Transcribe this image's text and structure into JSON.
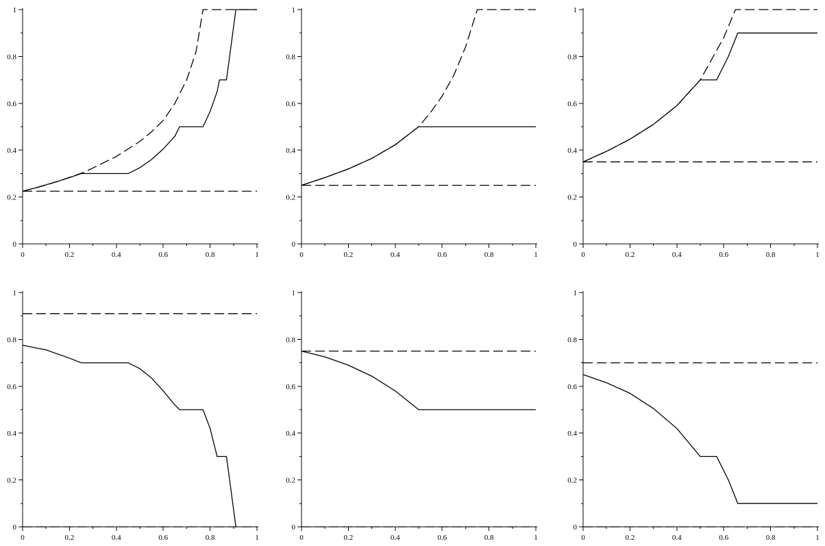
{
  "chart_data": [
    {
      "type": "line",
      "xlim": [
        0,
        1
      ],
      "ylim": [
        0,
        1
      ],
      "xticks": [
        "0",
        "0.2",
        "0.4",
        "0.6",
        "0.8",
        "1"
      ],
      "yticks": [
        "0",
        "0.2",
        "0.4",
        "0.6",
        "0.8",
        "1"
      ],
      "grid": false,
      "series": [
        {
          "style": "solid",
          "points": [
            [
              0,
              0.225
            ],
            [
              0.05,
              0.238
            ],
            [
              0.1,
              0.252
            ],
            [
              0.15,
              0.267
            ],
            [
              0.2,
              0.283
            ],
            [
              0.25,
              0.3
            ],
            [
              0.26,
              0.3
            ],
            [
              0.45,
              0.3
            ],
            [
              0.5,
              0.325
            ],
            [
              0.55,
              0.36
            ],
            [
              0.6,
              0.405
            ],
            [
              0.65,
              0.46
            ],
            [
              0.67,
              0.5
            ],
            [
              0.77,
              0.5
            ],
            [
              0.8,
              0.565
            ],
            [
              0.83,
              0.65
            ],
            [
              0.84,
              0.7
            ],
            [
              0.87,
              0.7
            ],
            [
              0.89,
              0.85
            ],
            [
              0.91,
              1.0
            ],
            [
              1,
              1.0
            ]
          ]
        },
        {
          "style": "dashed",
          "points": [
            [
              0,
              0.225
            ],
            [
              0.1,
              0.251
            ],
            [
              0.2,
              0.284
            ],
            [
              0.26,
              0.305
            ],
            [
              0.3,
              0.324
            ],
            [
              0.4,
              0.373
            ],
            [
              0.5,
              0.437
            ],
            [
              0.55,
              0.478
            ],
            [
              0.6,
              0.527
            ],
            [
              0.65,
              0.6
            ],
            [
              0.7,
              0.7
            ],
            [
              0.74,
              0.82
            ],
            [
              0.77,
              1.0
            ],
            [
              1,
              1.0
            ]
          ]
        },
        {
          "style": "dashed",
          "points": [
            [
              0,
              0.225
            ],
            [
              1,
              0.225
            ]
          ]
        }
      ]
    },
    {
      "type": "line",
      "xlim": [
        0,
        1
      ],
      "ylim": [
        0,
        1
      ],
      "xticks": [
        "0",
        "0.2",
        "0.4",
        "0.6",
        "0.8",
        "1"
      ],
      "yticks": [
        "0",
        "0.2",
        "0.4",
        "0.6",
        "0.8",
        "1"
      ],
      "grid": false,
      "series": [
        {
          "style": "solid",
          "points": [
            [
              0,
              0.25
            ],
            [
              0.1,
              0.283
            ],
            [
              0.2,
              0.32
            ],
            [
              0.3,
              0.365
            ],
            [
              0.4,
              0.423
            ],
            [
              0.5,
              0.5
            ],
            [
              1,
              0.5
            ]
          ]
        },
        {
          "style": "dashed",
          "points": [
            [
              0,
              0.25
            ],
            [
              0.1,
              0.283
            ],
            [
              0.2,
              0.32
            ],
            [
              0.3,
              0.365
            ],
            [
              0.4,
              0.423
            ],
            [
              0.5,
              0.5
            ],
            [
              0.55,
              0.56
            ],
            [
              0.6,
              0.63
            ],
            [
              0.65,
              0.72
            ],
            [
              0.7,
              0.84
            ],
            [
              0.75,
              1.0
            ],
            [
              1,
              1.0
            ]
          ]
        },
        {
          "style": "dashed",
          "points": [
            [
              0,
              0.25
            ],
            [
              1,
              0.25
            ]
          ]
        }
      ]
    },
    {
      "type": "line",
      "xlim": [
        0,
        1
      ],
      "ylim": [
        0,
        1
      ],
      "xticks": [
        "0",
        "0.2",
        "0.4",
        "0.6",
        "0.8",
        "1"
      ],
      "yticks": [
        "0",
        "0.2",
        "0.4",
        "0.6",
        "0.8",
        "1"
      ],
      "grid": false,
      "series": [
        {
          "style": "solid",
          "points": [
            [
              0,
              0.35
            ],
            [
              0.1,
              0.395
            ],
            [
              0.2,
              0.447
            ],
            [
              0.3,
              0.51
            ],
            [
              0.4,
              0.59
            ],
            [
              0.5,
              0.7
            ],
            [
              0.57,
              0.7
            ],
            [
              0.62,
              0.8
            ],
            [
              0.66,
              0.9
            ],
            [
              1,
              0.9
            ]
          ]
        },
        {
          "style": "dashed",
          "points": [
            [
              0,
              0.35
            ],
            [
              0.1,
              0.395
            ],
            [
              0.2,
              0.447
            ],
            [
              0.3,
              0.51
            ],
            [
              0.4,
              0.59
            ],
            [
              0.5,
              0.7
            ],
            [
              0.55,
              0.79
            ],
            [
              0.6,
              0.88
            ],
            [
              0.65,
              1.0
            ],
            [
              1,
              1.0
            ]
          ]
        },
        {
          "style": "dashed",
          "points": [
            [
              0,
              0.35
            ],
            [
              1,
              0.35
            ]
          ]
        }
      ]
    },
    {
      "type": "line",
      "xlim": [
        0,
        1
      ],
      "ylim": [
        0,
        1
      ],
      "xticks": [
        "0",
        "0.2",
        "0.4",
        "0.6",
        "0.8",
        "1"
      ],
      "yticks": [
        "0",
        "0.2",
        "0.4",
        "0.6",
        "0.8",
        "1"
      ],
      "grid": false,
      "series": [
        {
          "style": "solid",
          "points": [
            [
              0,
              0.775
            ],
            [
              0.1,
              0.755
            ],
            [
              0.2,
              0.72
            ],
            [
              0.25,
              0.7
            ],
            [
              0.45,
              0.7
            ],
            [
              0.5,
              0.675
            ],
            [
              0.55,
              0.635
            ],
            [
              0.6,
              0.58
            ],
            [
              0.65,
              0.52
            ],
            [
              0.67,
              0.5
            ],
            [
              0.77,
              0.5
            ],
            [
              0.8,
              0.42
            ],
            [
              0.83,
              0.3
            ],
            [
              0.87,
              0.3
            ],
            [
              0.89,
              0.15
            ],
            [
              0.91,
              0.0
            ]
          ]
        },
        {
          "style": "dashed",
          "points": [
            [
              0,
              0.91
            ],
            [
              1,
              0.91
            ]
          ]
        },
        {
          "style": "dashed",
          "points": [
            [
              0,
              0.0
            ],
            [
              1,
              0.0
            ]
          ]
        }
      ]
    },
    {
      "type": "line",
      "xlim": [
        0,
        1
      ],
      "ylim": [
        0,
        1
      ],
      "xticks": [
        "0",
        "0.2",
        "0.4",
        "0.6",
        "0.8",
        "1"
      ],
      "yticks": [
        "0",
        "0.2",
        "0.4",
        "0.6",
        "0.8",
        "1"
      ],
      "grid": false,
      "series": [
        {
          "style": "solid",
          "points": [
            [
              0,
              0.75
            ],
            [
              0.1,
              0.725
            ],
            [
              0.2,
              0.69
            ],
            [
              0.3,
              0.643
            ],
            [
              0.4,
              0.58
            ],
            [
              0.5,
              0.5
            ],
            [
              1,
              0.5
            ]
          ]
        },
        {
          "style": "dashed",
          "points": [
            [
              0,
              0.75
            ],
            [
              1,
              0.75
            ]
          ]
        },
        {
          "style": "dashed",
          "points": [
            [
              0,
              0.0
            ],
            [
              1,
              0.0
            ]
          ]
        }
      ]
    },
    {
      "type": "line",
      "xlim": [
        0,
        1
      ],
      "ylim": [
        0,
        1
      ],
      "xticks": [
        "0",
        "0.2",
        "0.4",
        "0.6",
        "0.8",
        "1"
      ],
      "yticks": [
        "0",
        "0.2",
        "0.4",
        "0.6",
        "0.8",
        "1"
      ],
      "grid": false,
      "series": [
        {
          "style": "solid",
          "points": [
            [
              0,
              0.65
            ],
            [
              0.1,
              0.615
            ],
            [
              0.2,
              0.57
            ],
            [
              0.3,
              0.505
            ],
            [
              0.4,
              0.42
            ],
            [
              0.5,
              0.3
            ],
            [
              0.57,
              0.3
            ],
            [
              0.62,
              0.2
            ],
            [
              0.66,
              0.1
            ],
            [
              1,
              0.1
            ]
          ]
        },
        {
          "style": "dashed",
          "points": [
            [
              0,
              0.7
            ],
            [
              1,
              0.7
            ]
          ]
        },
        {
          "style": "dashed",
          "points": [
            [
              0,
              0.0
            ],
            [
              1,
              0.0
            ]
          ]
        }
      ]
    }
  ]
}
